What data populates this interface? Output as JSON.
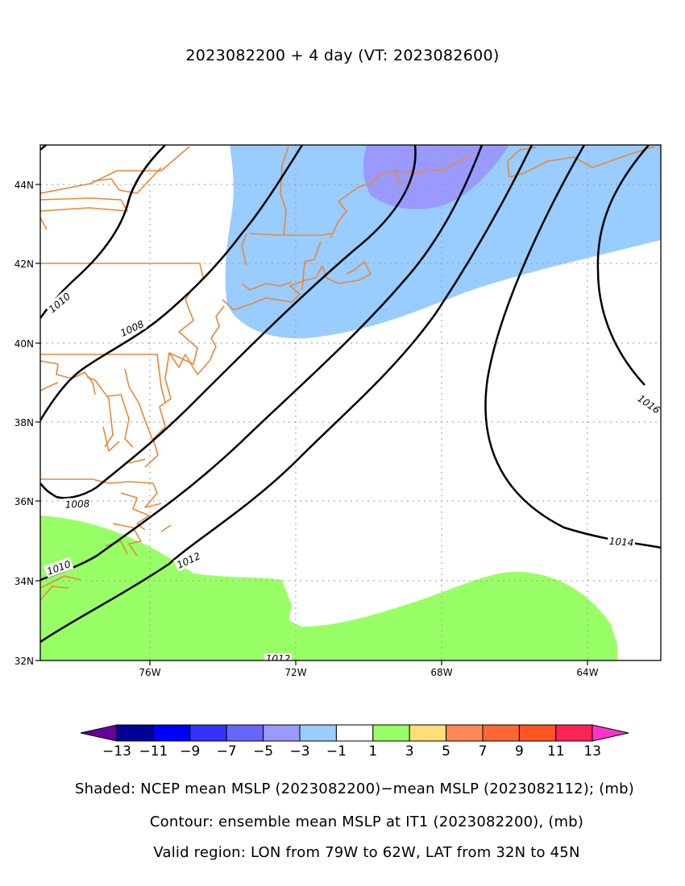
{
  "title": "2023082200 + 4 day (VT: 2023082600)",
  "map": {
    "lat_ticks": [
      "44N",
      "42N",
      "40N",
      "38N",
      "36N",
      "34N",
      "32N"
    ],
    "lon_ticks": [
      "76W",
      "72W",
      "68W",
      "64W"
    ],
    "contour_labels": {
      "c1016": "1016",
      "c1014": "1014",
      "c1012": "1012",
      "c1012b": "1012",
      "c1010a": "1010",
      "c1010b": "1010",
      "c1008a": "1008",
      "c1008b": "1008"
    },
    "colors": {
      "coastline": "#e8873a",
      "shade_minus3_minus1": "#99ccff",
      "shade_minus5_minus3": "#9999ff",
      "shade_1_3": "#99ff66",
      "contour": "#000000",
      "grid": "#9a9a9a"
    }
  },
  "colorbar": {
    "labels": [
      "−13",
      "−11",
      "−9",
      "−7",
      "−5",
      "−3",
      "−1",
      "1",
      "3",
      "5",
      "7",
      "9",
      "11",
      "13"
    ],
    "colors": [
      "#000099",
      "#0000ff",
      "#3333ff",
      "#6666ff",
      "#9999ff",
      "#99ccff",
      "#ffffff",
      "#99ff66",
      "#ffdd77",
      "#ff8855",
      "#ff6633",
      "#ff5522",
      "#ff2255"
    ],
    "under_color": "#660099",
    "over_color": "#ff33cc"
  },
  "captions": {
    "shaded": "Shaded: NCEP mean MSLP (2023082200)−mean MSLP (2023082112); (mb)",
    "contour": "Contour: ensemble mean MSLP at IT1 (2023082200), (mb)",
    "region": "Valid region: LON from 79W to 62W, LAT from 32N to 45N"
  }
}
